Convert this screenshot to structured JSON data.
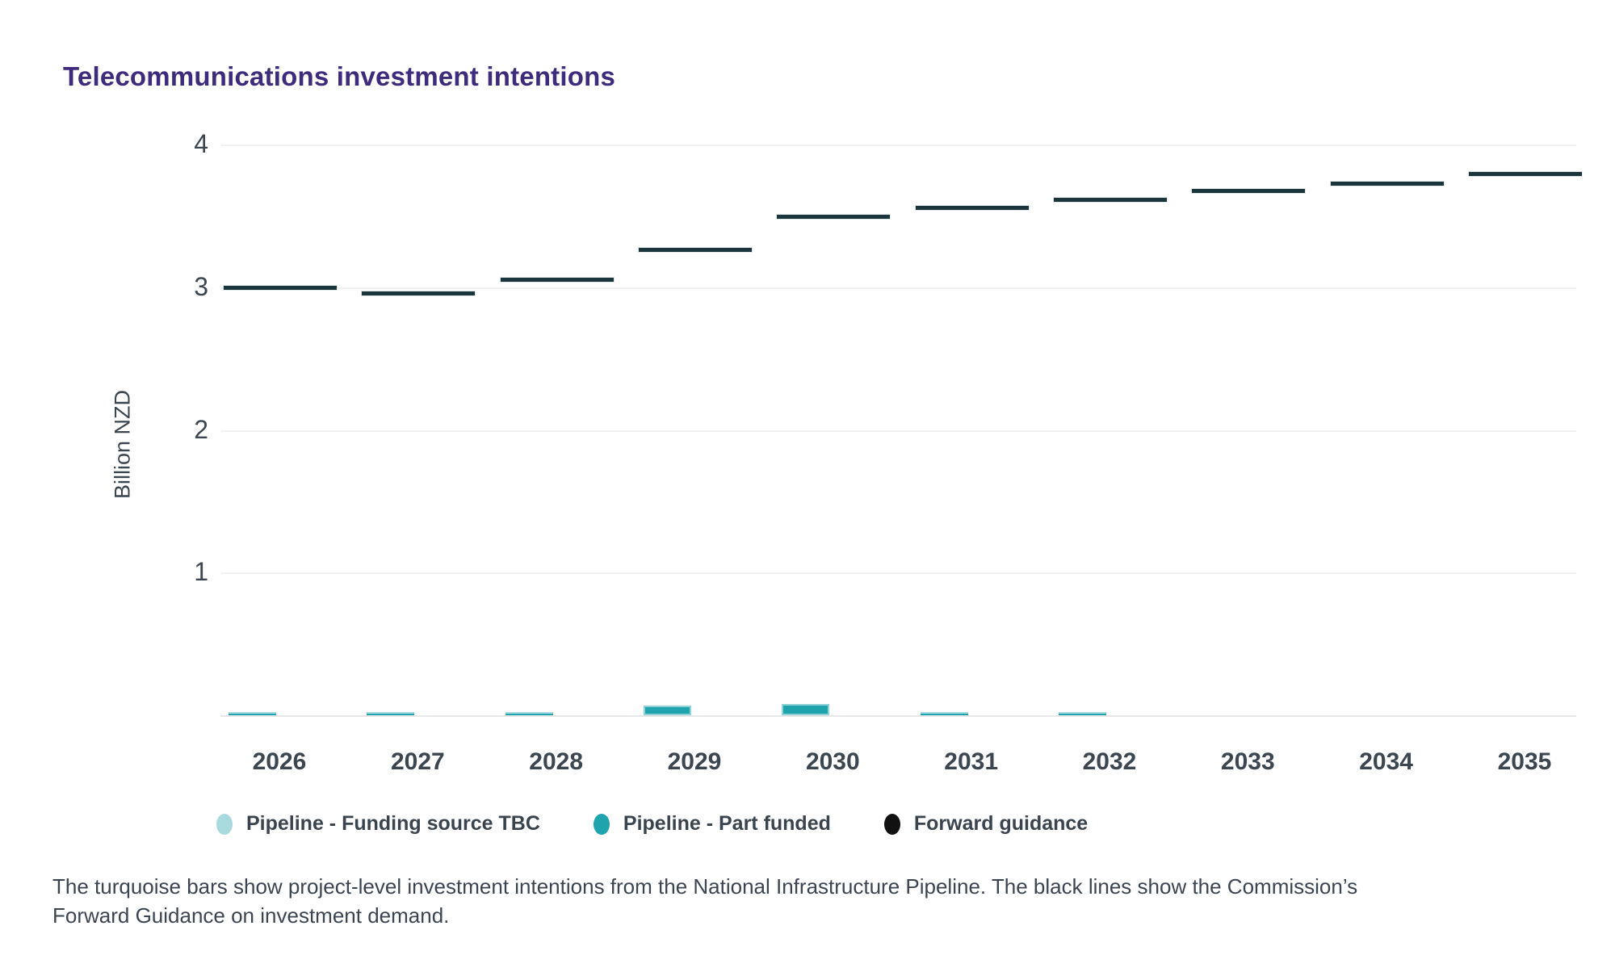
{
  "title": "Telecommunications investment intentions",
  "y_axis": {
    "label": "Billion NZD",
    "ticks": [
      "1",
      "2",
      "3",
      "4"
    ]
  },
  "x_axis": {
    "categories": [
      "2026",
      "2027",
      "2028",
      "2029",
      "2030",
      "2031",
      "2032",
      "2033",
      "2034",
      "2035"
    ]
  },
  "legend": [
    {
      "label": "Pipeline - Funding source TBC",
      "color": "#a9dade"
    },
    {
      "label": "Pipeline - Part funded",
      "color": "#1fa3ad"
    },
    {
      "label": "Forward guidance",
      "color": "#111111"
    }
  ],
  "caption": {
    "line1": "The turquoise bars show project-level investment intentions from the National Infrastructure Pipeline. The black lines show the Commission’s",
    "line2": "Forward Guidance on investment demand."
  },
  "colors": {
    "title": "#3e2b7d",
    "axis_text": "#3c4650",
    "gridline": "#f1f1f1",
    "baseline": "#e7e7e7",
    "tbc_bar": "#a9dade",
    "part_funded_bar": "#1fa3ad",
    "part_funded_stroke": "#8ed2d6",
    "forward_guidance_line": "#1b353d"
  },
  "chart_data": {
    "type": "bar",
    "subtype": "stacked-bars-with-guidance-crossbars",
    "title": "Telecommunications investment intentions",
    "xlabel": "",
    "ylabel": "Billion NZD",
    "ylim": [
      0,
      4.2
    ],
    "yticks": [
      1,
      2,
      3,
      4
    ],
    "grid": true,
    "legend_position": "bottom",
    "categories": [
      "2026",
      "2027",
      "2028",
      "2029",
      "2030",
      "2031",
      "2032",
      "2033",
      "2034",
      "2035"
    ],
    "series": [
      {
        "name": "Pipeline - Funding source TBC",
        "type": "bar",
        "color": "#a9dade",
        "values": [
          0.01,
          0.01,
          0.01,
          0,
          0,
          0.01,
          0.01,
          0,
          0,
          0
        ]
      },
      {
        "name": "Pipeline - Part funded",
        "type": "bar",
        "color": "#1fa3ad",
        "values": [
          0.01,
          0.01,
          0.01,
          0.07,
          0.08,
          0.01,
          0.01,
          0,
          0,
          0
        ]
      },
      {
        "name": "Forward guidance",
        "type": "horizontal-line-segments",
        "color": "#1b353d",
        "values": [
          3.0,
          2.96,
          3.06,
          3.27,
          3.5,
          3.56,
          3.62,
          3.68,
          3.73,
          3.8
        ]
      }
    ]
  }
}
